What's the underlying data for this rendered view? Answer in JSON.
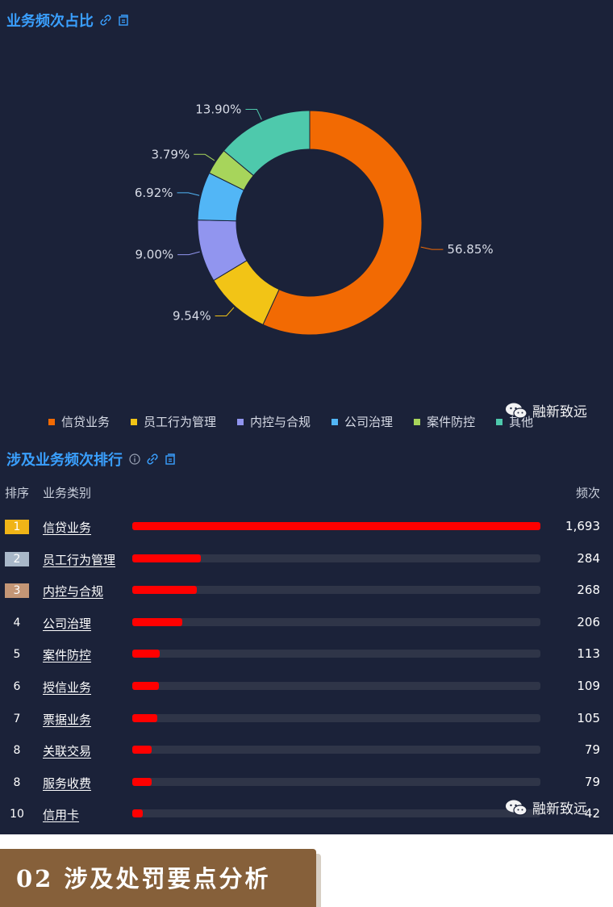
{
  "section1": {
    "title": "业务频次占比"
  },
  "chart_data": {
    "type": "pie",
    "categories": [
      "信贷业务",
      "员工行为管理",
      "内控与合规",
      "公司治理",
      "案件防控",
      "其他"
    ],
    "values": [
      56.85,
      9.54,
      9.0,
      6.92,
      3.79,
      13.9
    ],
    "labels": [
      "56.85%",
      "9.54%",
      "9.00%",
      "6.92%",
      "3.79%",
      "13.90%"
    ],
    "colors": [
      "#f26a03",
      "#f2c416",
      "#9195ef",
      "#52b6f6",
      "#a7d55b",
      "#4ec9ac"
    ],
    "legend_position": "bottom"
  },
  "legend": [
    {
      "label": "信贷业务",
      "color": "#f26a03"
    },
    {
      "label": "员工行为管理",
      "color": "#f2c416"
    },
    {
      "label": "内控与合规",
      "color": "#9195ef"
    },
    {
      "label": "公司治理",
      "color": "#52b6f6"
    },
    {
      "label": "案件防控",
      "color": "#a7d55b"
    },
    {
      "label": "其他",
      "color": "#4ec9ac"
    }
  ],
  "watermark": "融新致远",
  "section2": {
    "title": "涉及业务频次排行"
  },
  "table": {
    "headers": {
      "rank": "排序",
      "category": "业务类别",
      "freq": "频次"
    },
    "max": 1693,
    "rows": [
      {
        "rank": "1",
        "category": "信贷业务",
        "value": 1693,
        "display": "1,693",
        "badge": "#f0b417"
      },
      {
        "rank": "2",
        "category": "员工行为管理",
        "value": 284,
        "display": "284",
        "badge": "#a9b8c9"
      },
      {
        "rank": "3",
        "category": "内控与合规",
        "value": 268,
        "display": "268",
        "badge": "#c49676"
      },
      {
        "rank": "4",
        "category": "公司治理",
        "value": 206,
        "display": "206"
      },
      {
        "rank": "5",
        "category": "案件防控",
        "value": 113,
        "display": "113"
      },
      {
        "rank": "6",
        "category": "授信业务",
        "value": 109,
        "display": "109"
      },
      {
        "rank": "7",
        "category": "票据业务",
        "value": 105,
        "display": "105"
      },
      {
        "rank": "8",
        "category": "关联交易",
        "value": 79,
        "display": "79"
      },
      {
        "rank": "8",
        "category": "服务收费",
        "value": 79,
        "display": "79"
      },
      {
        "rank": "10",
        "category": "信用卡",
        "value": 42,
        "display": "42"
      }
    ]
  },
  "banner": {
    "text": "02  涉及处罚要点分析"
  }
}
